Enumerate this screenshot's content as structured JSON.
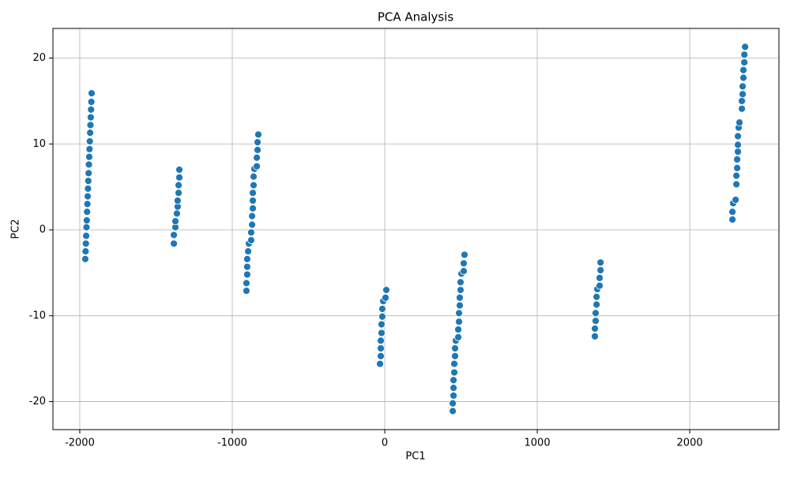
{
  "chart_data": {
    "type": "scatter",
    "title": "PCA Analysis",
    "xlabel": "PC1",
    "ylabel": "PC2",
    "color": "#1f77b4",
    "x": [
      -1964,
      -1962,
      -1960,
      -1958,
      -1956,
      -1954,
      -1952,
      -1950,
      -1948,
      -1946,
      -1944,
      -1942,
      -1940,
      -1938,
      -1936,
      -1934,
      -1932,
      -1930,
      -1928,
      -1926,
      -1924,
      -1922,
      -1383,
      -1383,
      -1373,
      -1373,
      -1363,
      -1358,
      -1358,
      -1352,
      -1352,
      -1347,
      -1347,
      -907,
      -907,
      -902,
      -902,
      -902,
      -896,
      -891,
      -876,
      -876,
      -870,
      -870,
      -865,
      -865,
      -865,
      -860,
      -860,
      -855,
      -839,
      -839,
      -834,
      -834,
      -829,
      -31,
      -26,
      -26,
      -26,
      -21,
      -21,
      -16,
      -16,
      -10,
      5,
      10,
      446,
      446,
      451,
      451,
      451,
      456,
      456,
      461,
      461,
      466,
      482,
      482,
      487,
      487,
      492,
      492,
      497,
      497,
      503,
      518,
      518,
      523,
      1378,
      1378,
      1383,
      1383,
      1389,
      1389,
      1394,
      1409,
      1409,
      1415,
      1415,
      2280,
      2280,
      2285,
      2301,
      2306,
      2306,
      2311,
      2311,
      2316,
      2316,
      2316,
      2321,
      2326,
      2342,
      2342,
      2347,
      2347,
      2352,
      2352,
      2358,
      2358,
      2363
    ],
    "y": [
      -3.4,
      -2.5,
      -1.6,
      -0.7,
      0.3,
      1.1,
      2.1,
      3.0,
      3.9,
      4.8,
      5.7,
      6.6,
      7.6,
      8.5,
      9.4,
      10.3,
      11.3,
      12.2,
      13.1,
      14.0,
      14.9,
      15.9,
      -1.6,
      -0.6,
      0.3,
      1.0,
      1.9,
      2.7,
      3.4,
      4.3,
      5.2,
      6.1,
      7.0,
      -7.1,
      -6.2,
      -5.2,
      -4.3,
      -3.4,
      -2.5,
      -1.6,
      -1.2,
      -0.3,
      0.6,
      1.6,
      2.5,
      3.4,
      4.3,
      5.2,
      6.2,
      7.1,
      7.4,
      8.4,
      9.3,
      10.2,
      11.1,
      -15.6,
      -14.7,
      -13.8,
      -12.9,
      -12.0,
      -11.0,
      -10.1,
      -9.2,
      -8.3,
      -7.9,
      -7.0,
      -21.1,
      -20.2,
      -19.3,
      -18.4,
      -17.5,
      -16.6,
      -15.6,
      -14.7,
      -13.8,
      -12.9,
      -12.5,
      -11.6,
      -10.7,
      -9.7,
      -8.8,
      -7.9,
      -7.0,
      -6.1,
      -5.1,
      -4.8,
      -3.9,
      -2.9,
      -12.4,
      -11.5,
      -10.6,
      -9.7,
      -8.7,
      -7.8,
      -6.9,
      -6.5,
      -5.6,
      -4.7,
      -3.8,
      1.2,
      2.1,
      3.1,
      3.5,
      5.3,
      6.3,
      7.2,
      8.2,
      9.1,
      9.9,
      10.9,
      11.9,
      12.5,
      14.1,
      15.0,
      15.8,
      16.7,
      17.7,
      18.6,
      19.5,
      20.4,
      21.3
    ],
    "xlim": [
      -2176,
      2585
    ],
    "ylim": [
      -23.26,
      23.45
    ],
    "xticks": [
      -2000,
      -1000,
      0,
      1000,
      2000
    ],
    "yticks": [
      -20,
      -10,
      0,
      10,
      20
    ],
    "grid": true
  }
}
